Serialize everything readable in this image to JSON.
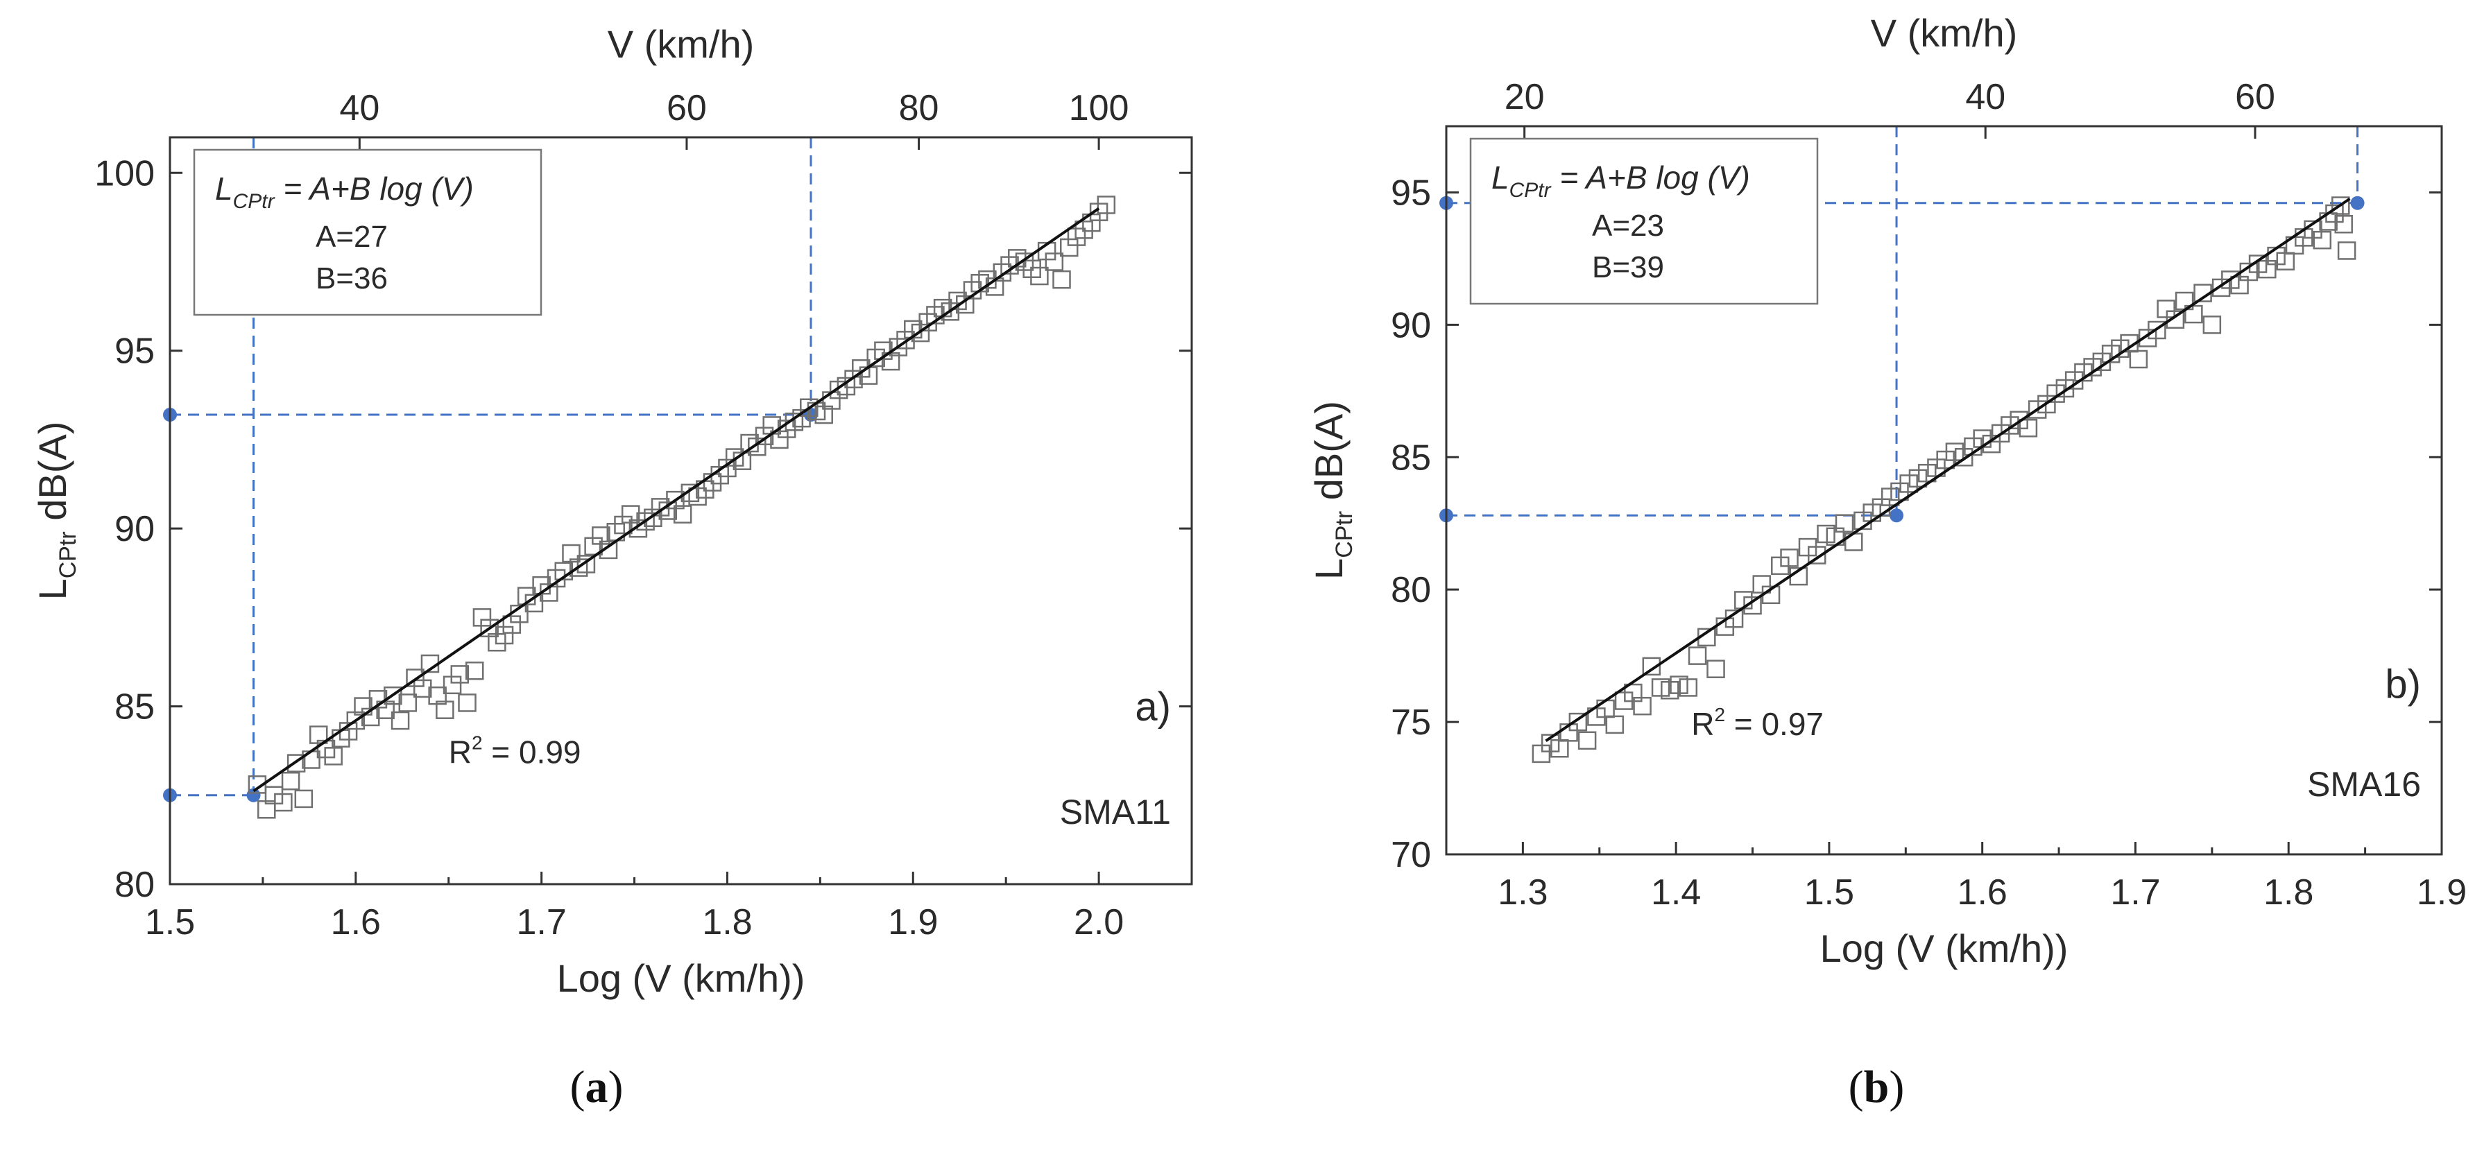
{
  "chart_data": [
    {
      "panel": "a",
      "type": "scatter",
      "caption": "a",
      "panel_label": "a)",
      "mix_label": "SMA11",
      "xlabel": "Log (V (km/h))",
      "top_xlabel": "V (km/h)",
      "ylabel_main": "L",
      "ylabel_sub": "CPtr",
      "ylabel_unit": " dB(A)",
      "xlim": [
        1.5,
        2.05
      ],
      "ylim": [
        80,
        101
      ],
      "xticks": [
        1.5,
        1.6,
        1.7,
        1.8,
        1.9,
        2.0
      ],
      "xtick_labels": [
        "1.5",
        "1.6",
        "1.7",
        "1.8",
        "1.9",
        "2.0"
      ],
      "yticks": [
        80,
        85,
        90,
        95,
        100
      ],
      "ytick_labels": [
        "80",
        "85",
        "90",
        "95",
        "100"
      ],
      "top_ticks": [
        40,
        60,
        80,
        100
      ],
      "top_tick_labels": [
        "40",
        "60",
        "80",
        "100"
      ],
      "legend": {
        "eq_main": "L",
        "eq_sub": "CPtr",
        "eq_rest": " = A+B log (V)",
        "a_label": "A=27",
        "b_label": "B=36"
      },
      "r2_main": "R",
      "r2_sup": "2",
      "r2_rest": " = 0.99",
      "fit": {
        "A": 27,
        "B": 36,
        "x": [
          1.545,
          2.0
        ]
      },
      "guides": [
        {
          "x": 1.545,
          "y": 82.5
        },
        {
          "x": 1.845,
          "y": 93.2
        }
      ],
      "points": {
        "x": [
          1.547,
          1.552,
          1.556,
          1.561,
          1.565,
          1.568,
          1.572,
          1.576,
          1.58,
          1.584,
          1.588,
          1.592,
          1.596,
          1.6,
          1.604,
          1.608,
          1.612,
          1.616,
          1.62,
          1.624,
          1.628,
          1.632,
          1.636,
          1.64,
          1.644,
          1.648,
          1.652,
          1.656,
          1.66,
          1.664,
          1.668,
          1.672,
          1.676,
          1.68,
          1.684,
          1.688,
          1.692,
          1.696,
          1.7,
          1.704,
          1.708,
          1.712,
          1.716,
          1.72,
          1.724,
          1.728,
          1.732,
          1.736,
          1.74,
          1.744,
          1.748,
          1.752,
          1.756,
          1.76,
          1.764,
          1.768,
          1.772,
          1.776,
          1.78,
          1.784,
          1.788,
          1.792,
          1.796,
          1.8,
          1.804,
          1.808,
          1.812,
          1.816,
          1.82,
          1.824,
          1.828,
          1.832,
          1.836,
          1.84,
          1.844,
          1.848,
          1.852,
          1.856,
          1.86,
          1.864,
          1.868,
          1.872,
          1.876,
          1.88,
          1.884,
          1.888,
          1.892,
          1.896,
          1.9,
          1.904,
          1.908,
          1.912,
          1.916,
          1.92,
          1.924,
          1.928,
          1.932,
          1.936,
          1.94,
          1.944,
          1.948,
          1.952,
          1.956,
          1.96,
          1.964,
          1.968,
          1.972,
          1.976,
          1.98,
          1.984,
          1.988,
          1.992,
          1.996,
          2.0,
          2.004
        ],
        "y": [
          82.8,
          82.1,
          82.5,
          82.3,
          82.9,
          83.4,
          82.4,
          83.5,
          84.2,
          83.8,
          83.6,
          84.1,
          84.3,
          84.6,
          85.0,
          84.7,
          85.2,
          84.9,
          85.3,
          84.6,
          85.1,
          85.8,
          85.5,
          86.2,
          85.3,
          84.9,
          85.6,
          85.9,
          85.1,
          86.0,
          87.5,
          87.2,
          86.8,
          87.0,
          87.3,
          87.6,
          88.1,
          87.9,
          88.4,
          88.2,
          88.6,
          88.8,
          89.3,
          88.9,
          89.0,
          89.5,
          89.8,
          89.4,
          89.9,
          90.1,
          90.4,
          90.0,
          90.2,
          90.3,
          90.6,
          90.5,
          90.8,
          90.4,
          91.0,
          90.9,
          91.1,
          91.3,
          91.5,
          91.7,
          92.0,
          91.9,
          92.4,
          92.3,
          92.6,
          92.9,
          92.5,
          92.8,
          93.0,
          93.1,
          93.4,
          93.3,
          93.2,
          93.6,
          93.9,
          94.0,
          94.2,
          94.5,
          94.3,
          94.8,
          95.0,
          94.7,
          95.1,
          95.3,
          95.6,
          95.5,
          95.8,
          96.0,
          96.2,
          96.1,
          96.4,
          96.3,
          96.7,
          96.9,
          97.0,
          96.8,
          97.2,
          97.4,
          97.6,
          97.5,
          97.3,
          97.1,
          97.8,
          97.5,
          97.0,
          97.9,
          98.2,
          98.4,
          98.6,
          98.9,
          99.1
        ]
      }
    },
    {
      "panel": "b",
      "type": "scatter",
      "caption": "b",
      "panel_label": "b)",
      "mix_label": "SMA16",
      "xlabel": "Log (V (km/h))",
      "top_xlabel": "V (km/h)",
      "ylabel_main": "L",
      "ylabel_sub": "CPtr",
      "ylabel_unit": " dB(A)",
      "xlim": [
        1.25,
        1.9
      ],
      "ylim": [
        70,
        97.5
      ],
      "xticks": [
        1.3,
        1.4,
        1.5,
        1.6,
        1.7,
        1.8,
        1.9
      ],
      "xtick_labels": [
        "1.3",
        "1.4",
        "1.5",
        "1.6",
        "1.7",
        "1.8",
        "1.9"
      ],
      "yticks": [
        70,
        75,
        80,
        85,
        90,
        95
      ],
      "ytick_labels": [
        "70",
        "75",
        "80",
        "85",
        "90",
        "95"
      ],
      "top_ticks": [
        20,
        40,
        60
      ],
      "top_tick_labels": [
        "20",
        "40",
        "60"
      ],
      "legend": {
        "eq_main": "L",
        "eq_sub": "CPtr",
        "eq_rest": " = A+B log (V)",
        "a_label": "A=23",
        "b_label": "B=39"
      },
      "r2_main": "R",
      "r2_sup": "2",
      "r2_rest": " = 0.97",
      "fit": {
        "A": 23,
        "B": 39,
        "x": [
          1.315,
          1.84
        ]
      },
      "guides": [
        {
          "x": 1.544,
          "y": 82.8
        },
        {
          "x": 1.845,
          "y": 94.6
        }
      ],
      "points": {
        "x": [
          1.312,
          1.318,
          1.324,
          1.33,
          1.336,
          1.342,
          1.348,
          1.354,
          1.36,
          1.366,
          1.372,
          1.378,
          1.384,
          1.39,
          1.396,
          1.402,
          1.408,
          1.414,
          1.42,
          1.426,
          1.432,
          1.438,
          1.444,
          1.45,
          1.456,
          1.462,
          1.468,
          1.474,
          1.48,
          1.486,
          1.492,
          1.498,
          1.504,
          1.51,
          1.516,
          1.522,
          1.528,
          1.534,
          1.54,
          1.546,
          1.552,
          1.558,
          1.564,
          1.57,
          1.576,
          1.582,
          1.588,
          1.594,
          1.6,
          1.606,
          1.612,
          1.618,
          1.624,
          1.63,
          1.636,
          1.642,
          1.648,
          1.654,
          1.66,
          1.666,
          1.672,
          1.678,
          1.684,
          1.69,
          1.696,
          1.702,
          1.708,
          1.714,
          1.72,
          1.726,
          1.732,
          1.738,
          1.744,
          1.75,
          1.756,
          1.762,
          1.768,
          1.774,
          1.78,
          1.786,
          1.792,
          1.798,
          1.804,
          1.81,
          1.816,
          1.822,
          1.826,
          1.83,
          1.834,
          1.836,
          1.838
        ],
        "y": [
          73.8,
          74.2,
          74.0,
          74.6,
          75.0,
          74.3,
          75.2,
          75.5,
          74.9,
          75.8,
          76.1,
          75.6,
          77.1,
          76.3,
          76.2,
          76.4,
          76.3,
          77.5,
          78.2,
          77.0,
          78.6,
          78.9,
          79.6,
          79.4,
          80.2,
          79.8,
          80.9,
          81.2,
          80.5,
          81.6,
          81.3,
          82.1,
          82.0,
          82.5,
          81.8,
          82.6,
          82.9,
          83.1,
          83.5,
          83.7,
          84.0,
          84.2,
          84.4,
          84.6,
          84.9,
          85.2,
          85.0,
          85.4,
          85.7,
          85.5,
          85.9,
          86.2,
          86.4,
          86.1,
          86.8,
          87.0,
          87.4,
          87.6,
          87.9,
          88.2,
          88.4,
          88.6,
          88.9,
          89.1,
          89.3,
          88.7,
          89.5,
          89.8,
          90.6,
          90.2,
          90.9,
          90.4,
          91.2,
          90.0,
          91.4,
          91.7,
          91.5,
          92.0,
          92.3,
          92.1,
          92.6,
          92.4,
          93.0,
          93.3,
          93.6,
          93.2,
          93.9,
          94.2,
          94.5,
          93.8,
          92.8
        ]
      }
    }
  ]
}
